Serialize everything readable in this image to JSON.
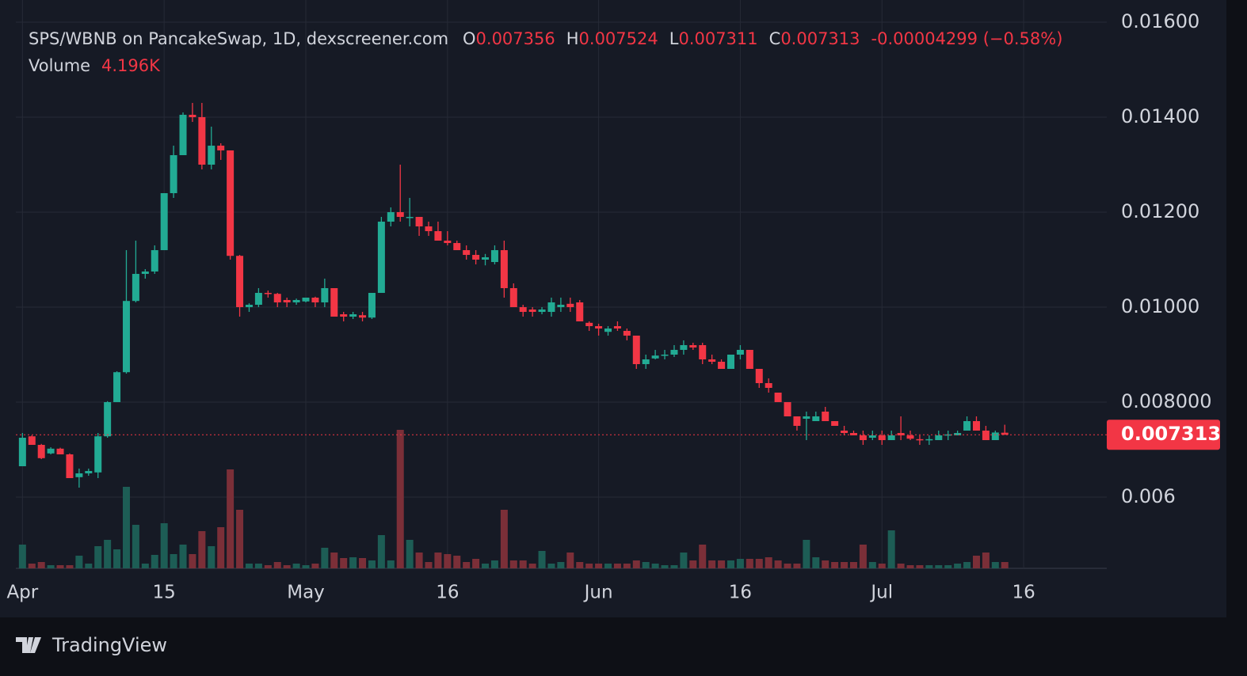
{
  "chart_data": {
    "type": "candlestick",
    "title": "SPS/WBNB on PancakeSwap, 1D, dexscreener.com",
    "ohlc_letters": [
      "O",
      "H",
      "L",
      "C"
    ],
    "change_label": "-0.00004299 (−0.58%)",
    "volume_title": "Volume",
    "volume_label": "4.196K",
    "footer": "TradingView",
    "colors": {
      "up": "#22ab94",
      "down": "#f23645",
      "up_volume": "#1d5d55",
      "down_volume": "#7b2f38"
    },
    "grid": true,
    "xlim": [
      -0.7,
      114.8
    ],
    "xticks": [
      {
        "value": 0,
        "label": "Apr"
      },
      15,
      {
        "value": 30,
        "label": "May"
      },
      {
        "value": 45,
        "label": "16"
      },
      {
        "value": 61,
        "label": "Jun"
      },
      {
        "value": 76,
        "label": "16"
      },
      {
        "value": 91,
        "label": "Jul"
      },
      {
        "value": 106,
        "label": "16"
      }
    ],
    "ylim": [
      0.0045,
      0.016167
    ],
    "yticks": [
      {
        "value": 0.016,
        "label": "0.01600"
      },
      {
        "value": 0.014,
        "label": "0.01400"
      },
      {
        "value": 0.012,
        "label": "0.01200"
      },
      {
        "value": 0.01,
        "label": "0.01000"
      },
      {
        "value": 0.008,
        "label": "0.008000"
      },
      0.006
    ],
    "x": [
      0,
      1,
      2,
      3,
      4,
      5,
      6,
      7,
      8,
      9,
      10,
      11,
      12,
      13,
      14,
      15,
      16,
      17,
      18,
      19,
      20,
      21,
      22,
      23,
      24,
      25,
      26,
      27,
      28,
      29,
      30,
      31,
      32,
      33,
      34,
      35,
      36,
      37,
      38,
      39,
      40,
      41,
      42,
      43,
      44,
      45,
      46,
      47,
      48,
      49,
      50,
      51,
      52,
      53,
      54,
      55,
      56,
      57,
      58,
      59,
      60,
      61,
      62,
      63,
      64,
      65,
      66,
      67,
      68,
      69,
      70,
      71,
      72,
      73,
      74,
      75,
      76,
      77,
      78,
      79,
      80,
      81,
      82,
      83,
      84,
      85,
      86,
      87,
      88,
      89,
      90,
      91,
      92,
      93,
      94,
      95,
      96,
      97,
      98,
      99,
      100,
      101,
      102,
      103,
      104
    ],
    "open": [
      0.00665,
      0.00728,
      0.0071,
      0.00692,
      0.00702,
      0.0069,
      0.00642,
      0.0065,
      0.00652,
      0.00728,
      0.008,
      0.00863,
      0.01013,
      0.0107,
      0.01075,
      0.0112,
      0.0124,
      0.0132,
      0.01405,
      0.014,
      0.013,
      0.0134,
      0.0133,
      0.01108,
      0.01,
      0.01005,
      0.0103,
      0.01028,
      0.01015,
      0.0101,
      0.01012,
      0.0102,
      0.0101,
      0.0104,
      0.00985,
      0.0098,
      0.00983,
      0.00978,
      0.0103,
      0.0118,
      0.012,
      0.01188,
      0.0119,
      0.0117,
      0.0116,
      0.0114,
      0.01135,
      0.0112,
      0.0111,
      0.011,
      0.01095,
      0.0112,
      0.0104,
      0.01,
      0.00995,
      0.0099,
      0.0099,
      0.01,
      0.01007,
      0.0101,
      0.00967,
      0.0096,
      0.00948,
      0.0096,
      0.0095,
      0.0094,
      0.0088,
      0.00892,
      0.00898,
      0.009,
      0.0091,
      0.0092,
      0.0092,
      0.0089,
      0.00885,
      0.0087,
      0.009,
      0.0091,
      0.0087,
      0.0084,
      0.0082,
      0.008,
      0.0077,
      0.00765,
      0.0076,
      0.0078,
      0.0076,
      0.0074,
      0.00735,
      0.0073,
      0.00725,
      0.0073,
      0.0072,
      0.00735,
      0.0073,
      0.00722,
      0.0072,
      0.0072,
      0.0073,
      0.0073,
      0.0074,
      0.0076,
      0.0074,
      0.0072,
      0.007356
    ],
    "high": [
      0.00735,
      0.0073,
      0.00712,
      0.00705,
      0.00704,
      0.00692,
      0.0066,
      0.0066,
      0.00735,
      0.00802,
      0.00865,
      0.0112,
      0.0114,
      0.0108,
      0.0113,
      0.0124,
      0.0134,
      0.0141,
      0.0143,
      0.0143,
      0.0138,
      0.01345,
      0.0133,
      0.0111,
      0.01008,
      0.0104,
      0.01035,
      0.0103,
      0.0102,
      0.01018,
      0.0102,
      0.01022,
      0.0106,
      0.0104,
      0.0099,
      0.0099,
      0.0099,
      0.0103,
      0.0119,
      0.0121,
      0.013,
      0.0123,
      0.0119,
      0.0118,
      0.0118,
      0.0116,
      0.0114,
      0.0113,
      0.0112,
      0.01112,
      0.0113,
      0.0114,
      0.0105,
      0.01005,
      0.01,
      0.01,
      0.0102,
      0.0102,
      0.0102,
      0.01015,
      0.0097,
      0.00965,
      0.0096,
      0.0097,
      0.00955,
      0.0094,
      0.009,
      0.0091,
      0.0091,
      0.0092,
      0.0093,
      0.00925,
      0.00925,
      0.009,
      0.0089,
      0.009,
      0.0092,
      0.0091,
      0.0087,
      0.0085,
      0.0082,
      0.008,
      0.0077,
      0.0078,
      0.0078,
      0.0079,
      0.0076,
      0.0075,
      0.0074,
      0.0074,
      0.0074,
      0.0074,
      0.0074,
      0.0077,
      0.0074,
      0.0073,
      0.0073,
      0.0074,
      0.0074,
      0.0074,
      0.0077,
      0.0077,
      0.0075,
      0.0074,
      0.007524
    ],
    "low": [
      0.00665,
      0.0071,
      0.0068,
      0.0069,
      0.0069,
      0.0064,
      0.0062,
      0.00645,
      0.0064,
      0.00725,
      0.008,
      0.0086,
      0.0101,
      0.0106,
      0.0107,
      0.0112,
      0.0123,
      0.0132,
      0.0139,
      0.0129,
      0.0129,
      0.0131,
      0.011,
      0.0098,
      0.0099,
      0.01,
      0.0102,
      0.01,
      0.01,
      0.01005,
      0.0101,
      0.01,
      0.01,
      0.0098,
      0.0097,
      0.00975,
      0.0097,
      0.00975,
      0.0103,
      0.0117,
      0.0118,
      0.0117,
      0.0115,
      0.0115,
      0.0114,
      0.0113,
      0.0112,
      0.011,
      0.0109,
      0.01088,
      0.0109,
      0.0102,
      0.01,
      0.0098,
      0.0098,
      0.00985,
      0.0098,
      0.0099,
      0.0099,
      0.0097,
      0.0095,
      0.0094,
      0.0094,
      0.0095,
      0.0093,
      0.0087,
      0.0087,
      0.0089,
      0.0089,
      0.00895,
      0.009,
      0.0091,
      0.0088,
      0.0088,
      0.0087,
      0.0087,
      0.0089,
      0.0087,
      0.0083,
      0.0082,
      0.008,
      0.0077,
      0.0074,
      0.0072,
      0.0076,
      0.0076,
      0.0075,
      0.0073,
      0.0073,
      0.0071,
      0.0072,
      0.0071,
      0.0072,
      0.0072,
      0.0072,
      0.0071,
      0.0071,
      0.0072,
      0.0072,
      0.0073,
      0.0074,
      0.0074,
      0.0072,
      0.0072,
      0.007311
    ],
    "close": [
      0.00725,
      0.0071,
      0.00682,
      0.00702,
      0.0069,
      0.0064,
      0.0065,
      0.00655,
      0.00728,
      0.008,
      0.00863,
      0.01013,
      0.0107,
      0.01075,
      0.0112,
      0.0124,
      0.0132,
      0.01405,
      0.014,
      0.013,
      0.0134,
      0.0133,
      0.01108,
      0.01,
      0.01005,
      0.0103,
      0.01028,
      0.0101,
      0.0101,
      0.01015,
      0.0102,
      0.0101,
      0.0104,
      0.0098,
      0.0098,
      0.00985,
      0.00978,
      0.0103,
      0.0118,
      0.012,
      0.0119,
      0.0119,
      0.0117,
      0.0116,
      0.0114,
      0.01135,
      0.0112,
      0.0111,
      0.011,
      0.01105,
      0.0112,
      0.0104,
      0.01,
      0.0099,
      0.0099,
      0.00995,
      0.0101,
      0.01005,
      0.01,
      0.0097,
      0.0096,
      0.00955,
      0.00955,
      0.00955,
      0.0094,
      0.0088,
      0.0089,
      0.00898,
      0.009,
      0.0091,
      0.0092,
      0.00915,
      0.0089,
      0.00885,
      0.0087,
      0.009,
      0.0091,
      0.0087,
      0.0084,
      0.0083,
      0.008,
      0.0077,
      0.0075,
      0.0077,
      0.0077,
      0.0076,
      0.0075,
      0.00735,
      0.0073,
      0.0072,
      0.0073,
      0.0072,
      0.0073,
      0.0073,
      0.00723,
      0.0072,
      0.00722,
      0.0073,
      0.00732,
      0.00735,
      0.0076,
      0.0074,
      0.0072,
      0.00736,
      0.007313
    ],
    "volume": [
      15750,
      3150,
      4200,
      2100,
      2100,
      2100,
      8400,
      3150,
      14700,
      18900,
      12600,
      54075,
      28875,
      3150,
      8925,
      29925,
      9450,
      15750,
      9450,
      24675,
      14700,
      27300,
      65625,
      38850,
      3150,
      3150,
      2100,
      4200,
      2100,
      3150,
      2100,
      3150,
      13650,
      10500,
      6825,
      7350,
      6825,
      5250,
      22050,
      5250,
      91875,
      18900,
      10500,
      4200,
      10500,
      9450,
      8400,
      4200,
      6300,
      3150,
      5250,
      38850,
      5250,
      5250,
      3150,
      11550,
      3150,
      4200,
      10500,
      4200,
      3150,
      3150,
      3150,
      3150,
      3150,
      5250,
      4200,
      3150,
      2100,
      2100,
      10500,
      5250,
      15750,
      5250,
      5250,
      5250,
      6300,
      6300,
      6300,
      7350,
      5250,
      3150,
      3150,
      18900,
      7350,
      5250,
      4200,
      4200,
      4200,
      15750,
      4200,
      3150,
      25200,
      3150,
      2100,
      2100,
      2100,
      2100,
      2100,
      3150,
      4200,
      8400,
      10500,
      4200,
      4196
    ]
  }
}
